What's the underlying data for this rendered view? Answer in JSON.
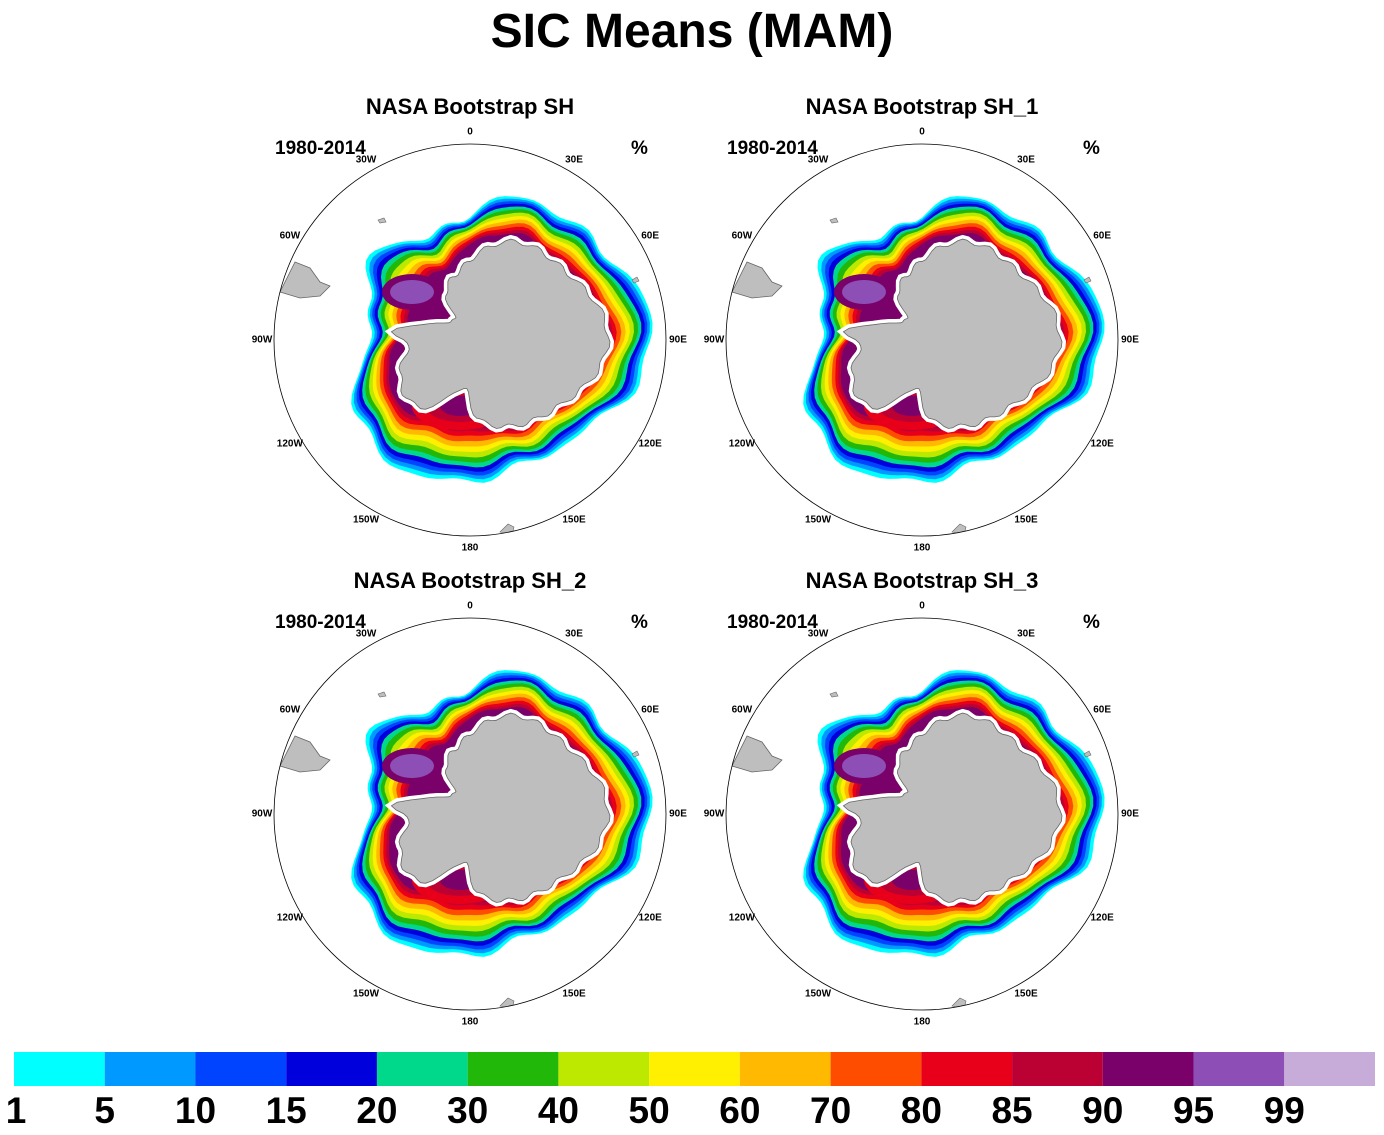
{
  "title": "SIC Means (MAM)",
  "panels": [
    {
      "title": "NASA Bootstrap SH",
      "years": "1980-2014",
      "units": "%"
    },
    {
      "title": "NASA Bootstrap SH_1",
      "years": "1980-2014",
      "units": "%"
    },
    {
      "title": "NASA Bootstrap SH_2",
      "years": "1980-2014",
      "units": "%"
    },
    {
      "title": "NASA Bootstrap SH_3",
      "years": "1980-2014",
      "units": "%"
    }
  ],
  "longitude_labels": [
    "0",
    "30E",
    "60E",
    "90E",
    "120E",
    "150E",
    "180",
    "150W",
    "120W",
    "90W",
    "60W",
    "30W"
  ],
  "colorbar": {
    "labels": [
      "1",
      "5",
      "10",
      "15",
      "20",
      "30",
      "40",
      "50",
      "60",
      "70",
      "80",
      "85",
      "90",
      "95",
      "99"
    ],
    "colors": [
      "#00ffff",
      "#0099ff",
      "#0044ff",
      "#0000dd",
      "#00d98c",
      "#22b80a",
      "#bde800",
      "#ffef00",
      "#ffb900",
      "#ff4d00",
      "#e8001a",
      "#bb0033",
      "#7a006a",
      "#8d4fb5",
      "#c7abd8"
    ]
  },
  "map": {
    "projection": "South Polar Stereographic",
    "land_color": "#bebebe",
    "ocean_color": "#ffffff"
  }
}
